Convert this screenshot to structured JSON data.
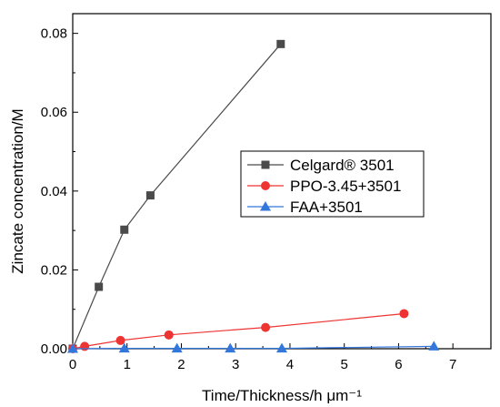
{
  "chart_data": {
    "type": "line",
    "title": "",
    "xlabel": "Time/Thickness/h μm⁻¹",
    "ylabel": "Zincate concentration/M",
    "xlim": [
      0,
      7.7
    ],
    "ylim": [
      0,
      0.085
    ],
    "x_ticks": [
      "0",
      "1",
      "2",
      "3",
      "4",
      "5",
      "6",
      "7"
    ],
    "y_ticks": [
      "0.00",
      "0.02",
      "0.04",
      "0.06",
      "0.08"
    ],
    "grid": false,
    "legend_position": "center-right",
    "series": [
      {
        "name": "Celgard® 3501",
        "color": "#4a4a4a",
        "marker": "square",
        "points": [
          [
            0.0,
            0.0
          ],
          [
            0.48,
            0.0157
          ],
          [
            0.95,
            0.0302
          ],
          [
            1.43,
            0.0389
          ],
          [
            3.83,
            0.0773
          ]
        ]
      },
      {
        "name": "PPO-3.45+3501",
        "color": "#ee3333",
        "marker": "circle",
        "points": [
          [
            0.0,
            0.0
          ],
          [
            0.22,
            0.0006
          ],
          [
            0.88,
            0.0021
          ],
          [
            1.77,
            0.0035
          ],
          [
            3.55,
            0.0054
          ],
          [
            6.1,
            0.0089
          ]
        ]
      },
      {
        "name": "FAA+3501",
        "color": "#3377dd",
        "marker": "triangle",
        "points": [
          [
            0.0,
            0.0
          ],
          [
            0.95,
            0.0001
          ],
          [
            1.92,
            0.0001
          ],
          [
            2.9,
            0.0001
          ],
          [
            3.85,
            0.0001
          ],
          [
            6.65,
            0.0006
          ]
        ]
      }
    ]
  }
}
